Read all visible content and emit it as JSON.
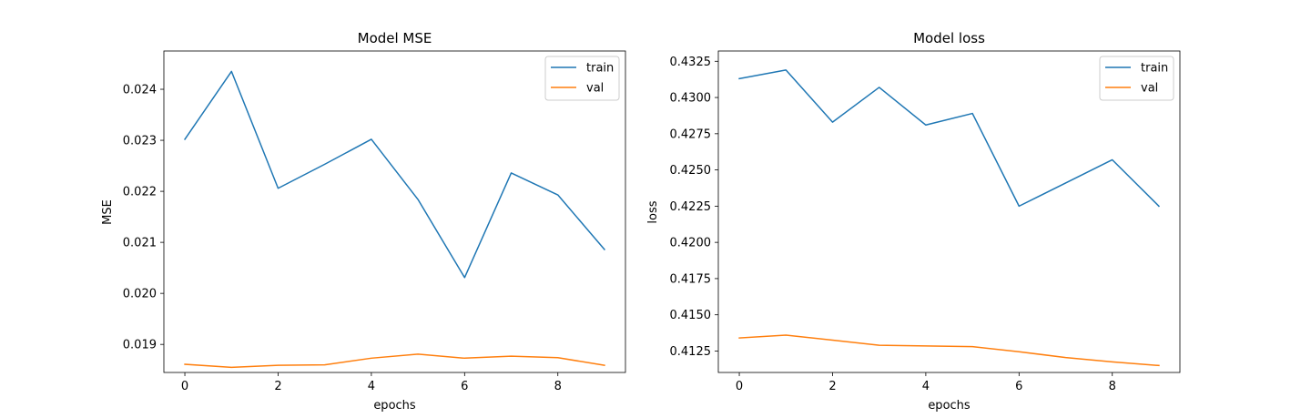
{
  "chart_data": [
    {
      "type": "line",
      "title": "Model MSE",
      "xlabel": "epochs",
      "ylabel": "MSE",
      "x": [
        0,
        1,
        2,
        3,
        4,
        5,
        6,
        7,
        8,
        9
      ],
      "xlim": [
        -0.45,
        9.45
      ],
      "ylim": [
        0.01845,
        0.02475
      ],
      "xticks": [
        0,
        2,
        4,
        6,
        8
      ],
      "xtick_labels": [
        "0",
        "2",
        "4",
        "6",
        "8"
      ],
      "yticks": [
        0.019,
        0.02,
        0.021,
        0.022,
        0.023,
        0.024
      ],
      "ytick_labels": [
        "0.019",
        "0.020",
        "0.021",
        "0.022",
        "0.023",
        "0.024"
      ],
      "grid": false,
      "legend_position": "upper right",
      "series": [
        {
          "name": "train",
          "color": "#1f77b4",
          "values": [
            0.02302,
            0.02435,
            0.02206,
            0.02253,
            0.02302,
            0.02184,
            0.02031,
            0.02236,
            0.02193,
            0.02086
          ]
        },
        {
          "name": "val",
          "color": "#ff7f0e",
          "values": [
            0.01861,
            0.01855,
            0.01859,
            0.0186,
            0.01873,
            0.01881,
            0.01873,
            0.01877,
            0.01874,
            0.01859
          ]
        }
      ]
    },
    {
      "type": "line",
      "title": "Model loss",
      "xlabel": "epochs",
      "ylabel": "loss",
      "x": [
        0,
        1,
        2,
        3,
        4,
        5,
        6,
        7,
        8,
        9
      ],
      "xlim": [
        -0.45,
        9.45
      ],
      "ylim": [
        0.41102,
        0.43321
      ],
      "xticks": [
        0,
        2,
        4,
        6,
        8
      ],
      "xtick_labels": [
        "0",
        "2",
        "4",
        "6",
        "8"
      ],
      "yticks": [
        0.4125,
        0.415,
        0.4175,
        0.42,
        0.4225,
        0.425,
        0.4275,
        0.43,
        0.4325
      ],
      "ytick_labels": [
        "0.4125",
        "0.4150",
        "0.4175",
        "0.4200",
        "0.4225",
        "0.4250",
        "0.4275",
        "0.4300",
        "0.4325"
      ],
      "grid": false,
      "legend_position": "upper right",
      "series": [
        {
          "name": "train",
          "color": "#1f77b4",
          "values": [
            0.4313,
            0.4319,
            0.4283,
            0.4307,
            0.4281,
            0.4289,
            0.4225,
            0.4241,
            0.4257,
            0.4225
          ]
        },
        {
          "name": "val",
          "color": "#ff7f0e",
          "values": [
            0.4134,
            0.4136,
            0.41325,
            0.4129,
            0.41285,
            0.4128,
            0.41245,
            0.41205,
            0.41175,
            0.4115
          ]
        }
      ]
    }
  ]
}
